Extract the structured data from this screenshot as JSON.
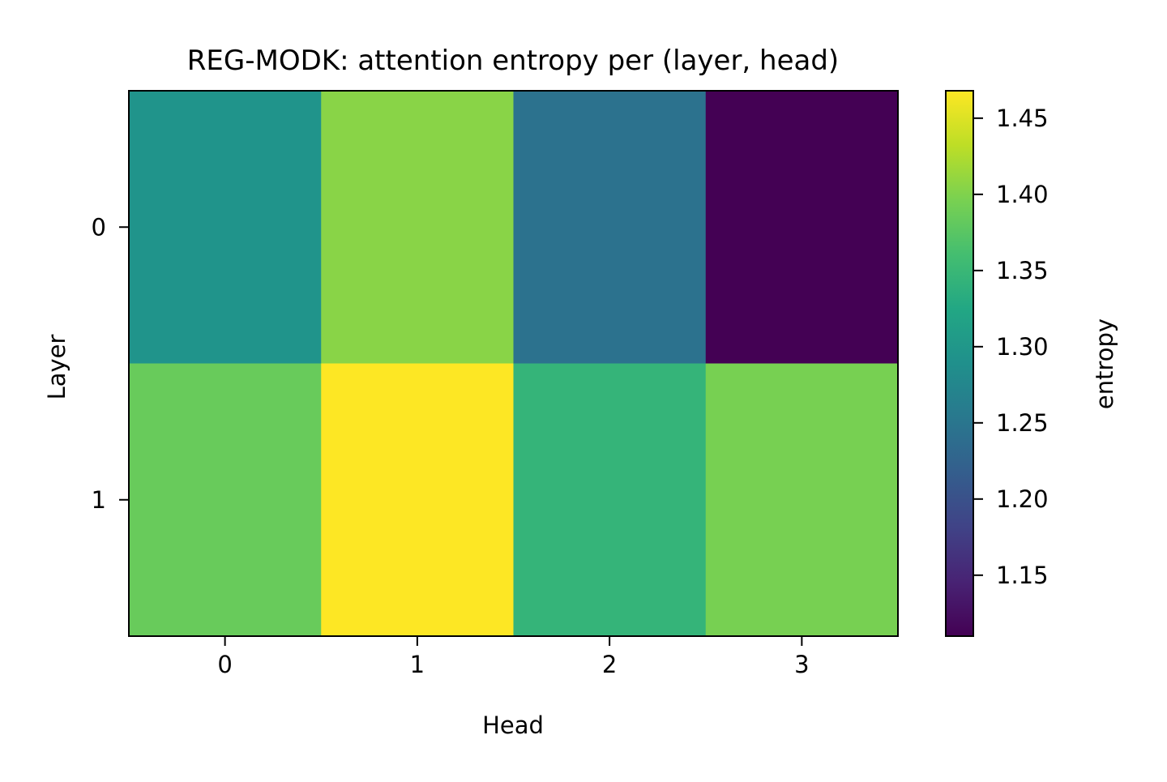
{
  "chart_data": {
    "type": "heatmap",
    "title": "REG-MODK: attention entropy per (layer, head)",
    "xlabel": "Head",
    "ylabel": "Layer",
    "x_categories": [
      "0",
      "1",
      "2",
      "3"
    ],
    "y_categories": [
      "0",
      "1"
    ],
    "values": [
      [
        1.295,
        1.405,
        1.245,
        1.11
      ],
      [
        1.385,
        1.468,
        1.345,
        1.395
      ]
    ],
    "colorbar": {
      "label": "entropy",
      "min": 1.11,
      "max": 1.468,
      "ticks": [
        "1.15",
        "1.20",
        "1.25",
        "1.30",
        "1.35",
        "1.40",
        "1.45"
      ],
      "colormap": "viridis"
    },
    "grid": false
  }
}
